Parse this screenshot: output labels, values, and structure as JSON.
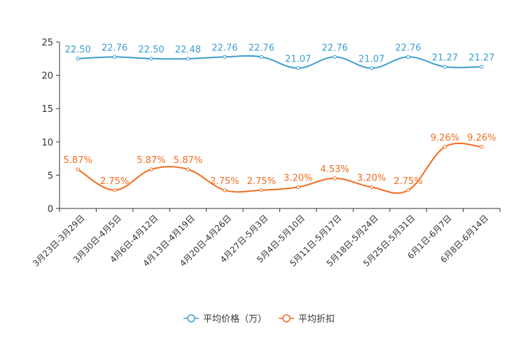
{
  "chart_data": {
    "type": "line",
    "title": "",
    "xlabel": "",
    "ylabel": "",
    "ylim": [
      0,
      25
    ],
    "yticks": [
      0,
      5,
      10,
      15,
      20,
      25
    ],
    "grid": false,
    "legend_position": "bottom-center",
    "categories": [
      "3月23日-3月29日",
      "3月30日-4月5日",
      "4月6日-4月12日",
      "4月13日-4月19日",
      "4月20日-4月26日",
      "4月27日-5月3日",
      "5月4日-5月10日",
      "5月11日-5月17日",
      "5月18日-5月24日",
      "5月25日-5月31日",
      "6月1日-6月7日",
      "6月8日-6月14日"
    ],
    "series": [
      {
        "name": "平均价格（万）",
        "color": "#3d9dd0",
        "values": [
          22.5,
          22.76,
          22.5,
          22.48,
          22.76,
          22.76,
          21.07,
          22.76,
          21.07,
          22.76,
          21.27,
          21.27
        ],
        "labels": [
          "22.50",
          "22.76",
          "22.50",
          "22.48",
          "22.76",
          "22.76",
          "21.07",
          "22.76",
          "21.07",
          "22.76",
          "21.27",
          "21.27"
        ]
      },
      {
        "name": "平均折扣",
        "color": "#f26b1d",
        "values": [
          5.87,
          2.75,
          5.87,
          5.87,
          2.75,
          2.75,
          3.2,
          4.53,
          3.2,
          2.75,
          9.26,
          9.26
        ],
        "labels": [
          "5.87%",
          "2.75%",
          "5.87%",
          "5.87%",
          "2.75%",
          "2.75%",
          "3.20%",
          "4.53%",
          "3.20%",
          "2.75%",
          "9.26%",
          "9.26%"
        ]
      }
    ]
  }
}
